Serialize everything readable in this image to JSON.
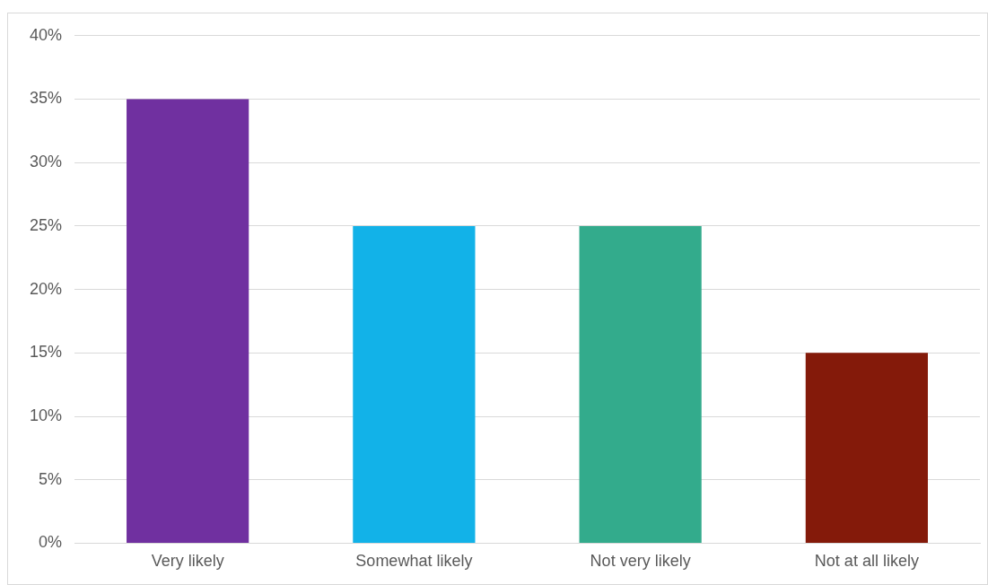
{
  "chart_data": {
    "type": "bar",
    "categories": [
      "Very likely",
      "Somewhat likely",
      "Not very likely",
      "Not at all likely"
    ],
    "values": [
      35,
      25,
      25,
      15
    ],
    "colors": [
      "#7030a0",
      "#12b2e8",
      "#33ab8c",
      "#841a0a"
    ],
    "ylim": [
      0,
      40
    ],
    "yticks": [
      {
        "value": 0,
        "label": "0%"
      },
      {
        "value": 5,
        "label": "5%"
      },
      {
        "value": 10,
        "label": "10%"
      },
      {
        "value": 15,
        "label": "15%"
      },
      {
        "value": 20,
        "label": "20%"
      },
      {
        "value": 25,
        "label": "25%"
      },
      {
        "value": 30,
        "label": "30%"
      },
      {
        "value": 35,
        "label": "35%"
      },
      {
        "value": 40,
        "label": "40%"
      }
    ],
    "grid": "y"
  }
}
